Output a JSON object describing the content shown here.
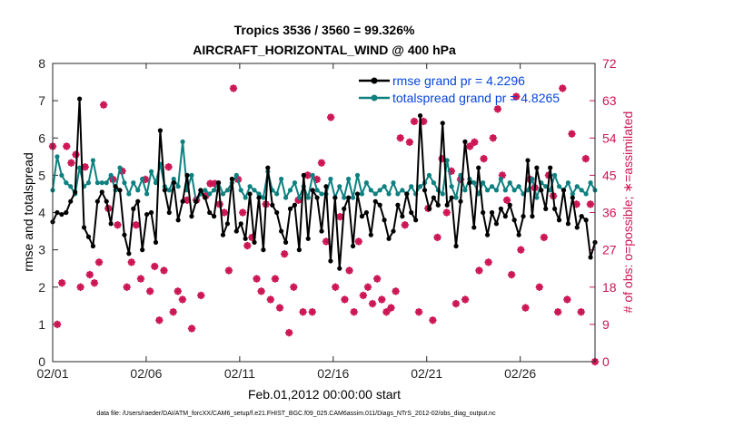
{
  "chart_data": {
    "type": "line",
    "title_line1": "Tropics 3536 / 3560 = 99.326%",
    "title_line2": "AIRCRAFT_HORIZONTAL_WIND @ 400 hPa",
    "xlabel": "Feb.01,2012 00:00:00 start",
    "ylabel_left": "rmse and totalspread",
    "ylabel_right": "# of obs: o=possible; ∗=assimilated",
    "footer": "data file: /Users/raeder/DAI/ATM_forcXX/CAM6_setup/f.e21.FHIST_BGC.f09_025.CAM6assim.011/Diags_NTrS_2012-02/obs_diag_output.nc",
    "xlim": [
      0,
      29
    ],
    "ylim_left": [
      0,
      8
    ],
    "ylim_right": [
      0,
      72
    ],
    "x_ticks": [
      {
        "v": 0,
        "label": "02/01"
      },
      {
        "v": 5,
        "label": "02/06"
      },
      {
        "v": 10,
        "label": "02/11"
      },
      {
        "v": 15,
        "label": "02/16"
      },
      {
        "v": 20,
        "label": "02/21"
      },
      {
        "v": 25,
        "label": "02/26"
      }
    ],
    "y_ticks_left": [
      0,
      1,
      2,
      3,
      4,
      5,
      6,
      7,
      8
    ],
    "y_ticks_right": [
      0,
      9,
      18,
      27,
      36,
      45,
      54,
      63,
      72
    ],
    "colors": {
      "rmse": "#000000",
      "spread": "#0e8080",
      "obs": "#cc1452",
      "legend_text": "#0645dd"
    },
    "series": [
      {
        "name": "rmse grand pr = 4.2296",
        "color": "#000000",
        "values": [
          3.75,
          4.0,
          3.95,
          4.0,
          4.3,
          4.55,
          7.05,
          3.6,
          3.35,
          3.1,
          4.3,
          4.55,
          4.3,
          3.7,
          4.7,
          4.6,
          3.4,
          2.9,
          4.1,
          4.3,
          3.0,
          3.95,
          4.0,
          3.2,
          6.2,
          4.6,
          4.0,
          4.8,
          3.8,
          4.3,
          5.0,
          3.9,
          4.3,
          4.6,
          4.4,
          4.0,
          3.9,
          4.8,
          3.4,
          3.7,
          4.9,
          3.5,
          3.7,
          3.3,
          4.5,
          3.2,
          4.4,
          3.0,
          5.2,
          4.2,
          4.0,
          3.5,
          3.2,
          4.1,
          4.2,
          3.0,
          5.0,
          3.3,
          4.6,
          4.4,
          3.5,
          4.7,
          2.7,
          4.4,
          2.5,
          4.1,
          4.4,
          3.1,
          4.5,
          3.9,
          4.0,
          3.4,
          4.3,
          4.2,
          3.8,
          3.3,
          3.5,
          4.2,
          3.9,
          4.5,
          4.0,
          3.8,
          6.6,
          4.6,
          4.1,
          4.4,
          4.2,
          6.4,
          4.2,
          4.4,
          3.1,
          4.3,
          5.9,
          4.8,
          3.6,
          5.2,
          4.0,
          3.4,
          4.0,
          3.7,
          4.1,
          3.9,
          4.2,
          3.8,
          3.4,
          3.9,
          5.4,
          3.9,
          5.2,
          4.6,
          4.1,
          5.2,
          4.1,
          3.8,
          4.6,
          3.7,
          4.4,
          3.6,
          3.9,
          3.8,
          2.8,
          3.2
        ]
      },
      {
        "name": "totalspread grand pr = 4.8265",
        "color": "#0e8080",
        "values": [
          4.6,
          5.5,
          5.0,
          4.8,
          4.7,
          4.5,
          5.2,
          4.7,
          4.8,
          5.4,
          4.8,
          4.8,
          4.8,
          5.0,
          4.6,
          5.2,
          4.8,
          4.5,
          4.8,
          4.6,
          4.9,
          4.5,
          5.1,
          4.8,
          5.3,
          4.7,
          4.6,
          4.9,
          4.7,
          5.9,
          4.6,
          5.0,
          4.3,
          4.5,
          4.6,
          4.5,
          4.6,
          4.8,
          4.5,
          4.6,
          4.8,
          5.0,
          4.6,
          4.4,
          4.7,
          4.6,
          4.5,
          4.4,
          5.1,
          4.6,
          4.5,
          4.9,
          4.4,
          4.6,
          4.8,
          4.4,
          4.7,
          4.4,
          5.0,
          4.6,
          4.5,
          4.5,
          4.9,
          4.4,
          4.7,
          4.4,
          4.9,
          4.4,
          5.0,
          4.5,
          4.8,
          4.6,
          4.5,
          4.6,
          4.7,
          4.5,
          4.8,
          4.5,
          4.6,
          4.5,
          4.7,
          4.5,
          4.7,
          4.8,
          5.0,
          4.8,
          4.6,
          4.5,
          5.4,
          4.7,
          4.4,
          5.0,
          4.6,
          4.9,
          4.8,
          4.5,
          4.8,
          4.6,
          4.7,
          4.6,
          4.9,
          4.6,
          4.8,
          4.6,
          4.7,
          4.5,
          4.6,
          4.9,
          4.4,
          4.8,
          4.7,
          4.6,
          5.0,
          4.7,
          4.6,
          4.8,
          4.5,
          4.7,
          4.6,
          4.5,
          4.8,
          4.6
        ]
      },
      {
        "name": "# of obs",
        "color": "#cc1452",
        "values": [
          52,
          9,
          19,
          52,
          48,
          50,
          18,
          47,
          21,
          19,
          24,
          62,
          37,
          44,
          33,
          46,
          18,
          24,
          33,
          20,
          44,
          17,
          23,
          10,
          22,
          47,
          12,
          17,
          15,
          39,
          8,
          39,
          16,
          40,
          43,
          43,
          38,
          36,
          22,
          66,
          44,
          36,
          28,
          30,
          20,
          17,
          38,
          15,
          20,
          13,
          26,
          7,
          18,
          39,
          12,
          45,
          12,
          44,
          48,
          29,
          59,
          18,
          35,
          15,
          22,
          12,
          29,
          16,
          18,
          14,
          20,
          15,
          12,
          13,
          17,
          54,
          33,
          53,
          58,
          12,
          58,
          37,
          10,
          30,
          49,
          36,
          46,
          14,
          44,
          15,
          52,
          53,
          22,
          49,
          24,
          54,
          61,
          45,
          39,
          21,
          64,
          27,
          13,
          44,
          42,
          18,
          30,
          45,
          40,
          12,
          66,
          15,
          55,
          38,
          12,
          49,
          38,
          0
        ]
      }
    ]
  }
}
